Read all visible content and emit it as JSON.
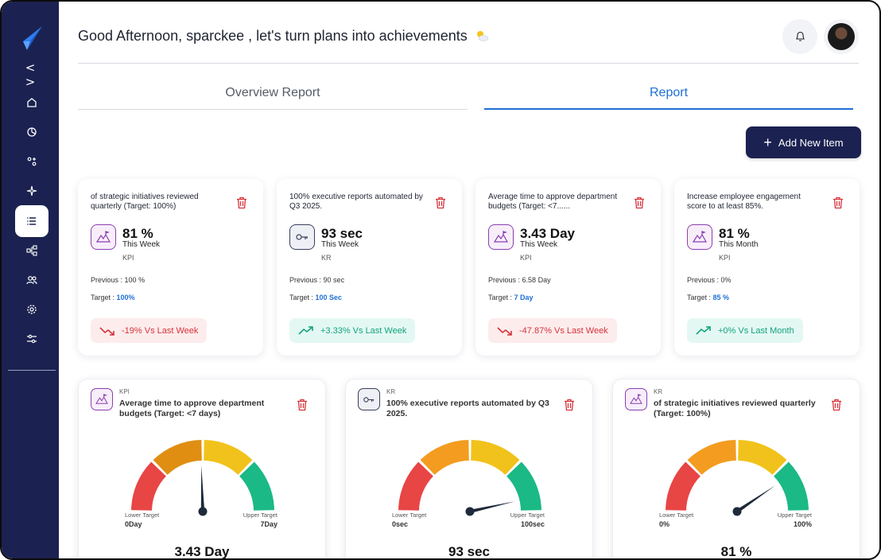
{
  "header": {
    "greeting": "Good Afternoon, sparckee , let's turn plans into achievements"
  },
  "tabs": [
    {
      "label": "Overview Report",
      "active": false
    },
    {
      "label": "Report",
      "active": true
    }
  ],
  "actions": {
    "add_label": "Add New Item"
  },
  "sidebar": {
    "items": [
      {
        "icon": "home-icon"
      },
      {
        "icon": "pie-chart-icon"
      },
      {
        "icon": "target-icon"
      },
      {
        "icon": "sparkle-icon"
      },
      {
        "icon": "list-icon",
        "active": true
      },
      {
        "icon": "hierarchy-icon"
      },
      {
        "icon": "users-icon"
      },
      {
        "icon": "settings-icon"
      },
      {
        "icon": "sliders-icon"
      }
    ]
  },
  "cards": [
    {
      "title": "of strategic initiatives reviewed quarterly (Target: 100%)",
      "value": "81 %",
      "period": "This Week",
      "type": "KPI",
      "previous_label": "Previous :",
      "previous": "100 %",
      "target_label": "Target :",
      "target": "100%",
      "trend": "-19%  Vs  Last Week",
      "trend_dir": "down"
    },
    {
      "title": "100% executive reports automated by Q3 2025.",
      "value": "93 sec",
      "period": "This Week",
      "type": "KR",
      "previous_label": "Previous :",
      "previous": "90 sec",
      "target_label": "Target :",
      "target": "100 Sec",
      "trend": "+3.33%  Vs  Last Week",
      "trend_dir": "up"
    },
    {
      "title": "Average time to approve department budgets (Target: <7......",
      "value": "3.43 Day",
      "period": "This Week",
      "type": "KPI",
      "previous_label": "Previous :",
      "previous": "6.58 Day",
      "target_label": "Target :",
      "target": "7 Day",
      "trend": "-47.87%  Vs  Last Week",
      "trend_dir": "down"
    },
    {
      "title": "Increase employee engagement score to at least 85%.",
      "value": "81 %",
      "period": "This Month",
      "type": "KPI",
      "previous_label": "Previous :",
      "previous": "0%",
      "target_label": "Target :",
      "target": "85 %",
      "trend": "+0%  Vs  Last Month",
      "trend_dir": "up"
    }
  ],
  "gauges": [
    {
      "type": "KPI",
      "title": "Average time to approve department budgets (Target: <7 days)",
      "lower_label": "Lower Target",
      "lower": "0Day",
      "upper_label": "Upper Target",
      "upper": "7Day",
      "value_text": "3.43 Day",
      "fraction": 0.49
    },
    {
      "type": "KR",
      "title": "100% executive reports automated by Q3 2025.",
      "lower_label": "Lower Target",
      "lower": "0sec",
      "upper_label": "Upper Target",
      "upper": "100sec",
      "value_text": "93 sec",
      "fraction": 0.93
    },
    {
      "type": "KR",
      "title": "of strategic initiatives reviewed quarterly (Target: 100%)",
      "lower_label": "Lower Target",
      "lower": "0%",
      "upper_label": "Upper Target",
      "upper": "100%",
      "value_text": "81 %",
      "fraction": 0.81
    }
  ],
  "colors": {
    "sidebar": "#1b2251",
    "accent": "#1f6fd6",
    "down": "#d6333a",
    "up": "#12a37e",
    "gauge": [
      "#e84545",
      "#f39c1f",
      "#f1c21b",
      "#1bb985"
    ]
  }
}
